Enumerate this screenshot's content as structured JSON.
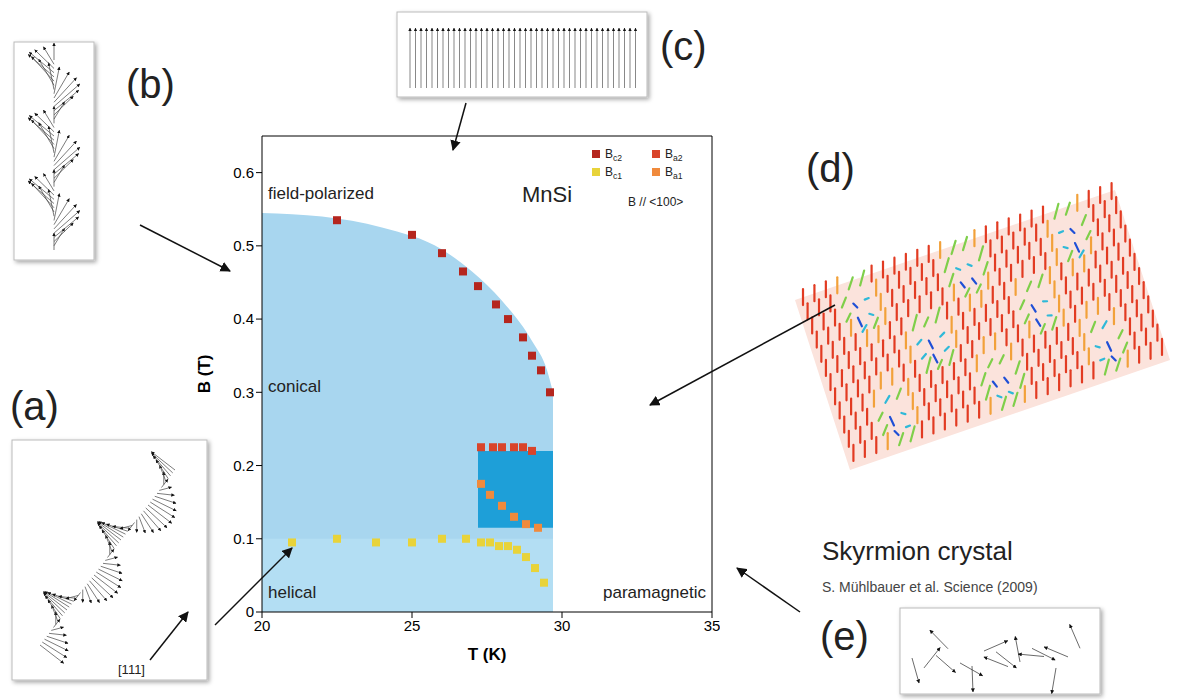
{
  "chart_data": {
    "type": "scatter",
    "title": "MnSi",
    "x_label": "T (K)",
    "y_label": "B (T)",
    "xlim": [
      20,
      35
    ],
    "ylim": [
      0,
      0.65
    ],
    "xticks": [
      20,
      25,
      30,
      35
    ],
    "yticks": [
      0,
      0.1,
      0.2,
      0.3,
      0.4,
      0.5,
      0.6
    ],
    "grid": false,
    "legend": "upper right",
    "legend_note": "B // <100>",
    "phase_labels": [
      "field-polarized",
      "conical",
      "helical",
      "paramagnetic"
    ],
    "regions": {
      "ordered": {
        "color": "#a8d6ef",
        "x": [
          20,
          22,
          24,
          26,
          27,
          28,
          29,
          29.5,
          29.7
        ],
        "y": [
          0.545,
          0.54,
          0.525,
          0.495,
          0.465,
          0.425,
          0.37,
          0.33,
          0.3
        ]
      },
      "helical": {
        "color": "#b3def3",
        "xlim": [
          20,
          29.7
        ],
        "ylim": [
          0,
          0.1
        ]
      },
      "skyrmion": {
        "color": "#1e9fd8",
        "xlim": [
          27.2,
          29.7
        ],
        "ylim": [
          0.115,
          0.22
        ]
      }
    },
    "series": [
      {
        "name": "Bc2",
        "color": "#b5261e",
        "marker": "square",
        "x": [
          22.5,
          25,
          26,
          26.7,
          27.2,
          27.8,
          28.2,
          28.7,
          29.0,
          29.3,
          29.6
        ],
        "y": [
          0.535,
          0.515,
          0.49,
          0.465,
          0.445,
          0.42,
          0.4,
          0.375,
          0.35,
          0.33,
          0.3
        ]
      },
      {
        "name": "Ba2",
        "color": "#d9442a",
        "marker": "square",
        "x": [
          27.3,
          27.7,
          28.0,
          28.4,
          28.7,
          29.0
        ],
        "y": [
          0.225,
          0.225,
          0.225,
          0.225,
          0.225,
          0.22
        ]
      },
      {
        "name": "Bc1",
        "color": "#e8d33a",
        "marker": "square",
        "x": [
          21,
          22.5,
          23.8,
          25,
          26,
          26.8,
          27.3,
          27.6,
          27.9,
          28.2,
          28.5,
          28.8,
          29.1,
          29.4
        ],
        "y": [
          0.095,
          0.1,
          0.095,
          0.095,
          0.1,
          0.1,
          0.095,
          0.095,
          0.09,
          0.09,
          0.085,
          0.075,
          0.06,
          0.04
        ]
      },
      {
        "name": "Ba1",
        "color": "#f08a3c",
        "marker": "square",
        "x": [
          27.3,
          27.6,
          28.0,
          28.4,
          28.8,
          29.2
        ],
        "y": [
          0.175,
          0.16,
          0.145,
          0.13,
          0.12,
          0.115
        ]
      }
    ]
  },
  "insets": [
    {
      "label": "(a)",
      "text": "[111]"
    },
    {
      "label": "(b)"
    },
    {
      "label": "(c)"
    },
    {
      "label": "(d)",
      "title": "Skyrmion crystal",
      "citation": "S. Mühlbauer et al. Science (2009)"
    },
    {
      "label": "(e)"
    }
  ]
}
